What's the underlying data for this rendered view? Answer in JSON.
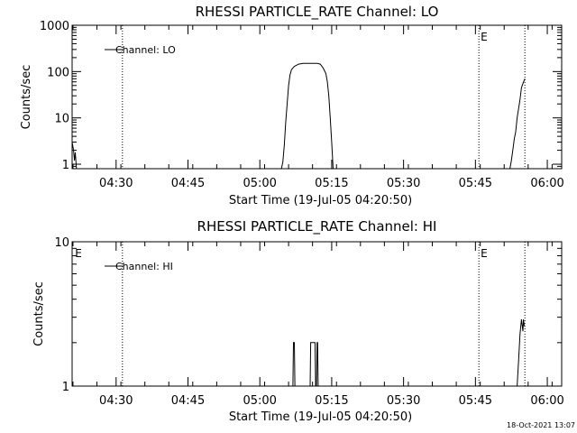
{
  "footer_timestamp": "18-Oct-2021 13:07",
  "chart_data": [
    {
      "type": "line",
      "title": "RHESSI PARTICLE_RATE Channel: LO",
      "xlabel": "Start Time (19-Jul-05 04:20:50)",
      "ylabel": "Counts/sec",
      "yscale": "log",
      "ylim": [
        0.8,
        1000
      ],
      "xlim": [
        4.347,
        6.05
      ],
      "x_ticks": [
        {
          "value": 4.5,
          "label": "04:30"
        },
        {
          "value": 4.75,
          "label": "04:45"
        },
        {
          "value": 5.0,
          "label": "05:00"
        },
        {
          "value": 5.25,
          "label": "05:15"
        },
        {
          "value": 5.5,
          "label": "05:30"
        },
        {
          "value": 5.75,
          "label": "05:45"
        },
        {
          "value": 6.0,
          "label": "06:00"
        }
      ],
      "y_ticks": [
        {
          "value": 1,
          "label": "1"
        },
        {
          "value": 10,
          "label": "10"
        },
        {
          "value": 100,
          "label": "100"
        },
        {
          "value": 1000,
          "label": "1000"
        }
      ],
      "legend": "Channel: LO",
      "legend_position": "top-left",
      "marker_lines": [
        4.522,
        5.762,
        5.922
      ],
      "marker_labels": [
        {
          "x": 5.768,
          "text": "E"
        }
      ],
      "series": [
        {
          "name": "Channel: LO",
          "segments": [
            [
              [
                4.347,
                3.0
              ],
              [
                4.352,
                2.0
              ],
              [
                4.355,
                1.2
              ],
              [
                4.358,
                1.8
              ],
              [
                4.362,
                0.8
              ]
            ],
            [
              [
                5.075,
                0.8
              ],
              [
                5.08,
                1.1
              ],
              [
                5.085,
                2.5
              ],
              [
                5.09,
                8
              ],
              [
                5.095,
                20
              ],
              [
                5.1,
                50
              ],
              [
                5.105,
                85
              ],
              [
                5.11,
                110
              ],
              [
                5.12,
                130
              ],
              [
                5.135,
                145
              ],
              [
                5.15,
                150
              ],
              [
                5.2,
                150
              ],
              [
                5.21,
                145
              ],
              [
                5.22,
                120
              ],
              [
                5.23,
                90
              ],
              [
                5.235,
                60
              ],
              [
                5.24,
                30
              ],
              [
                5.245,
                10
              ],
              [
                5.25,
                3
              ],
              [
                5.255,
                0.8
              ]
            ],
            [
              [
                5.87,
                0.8
              ],
              [
                5.875,
                1.2
              ],
              [
                5.88,
                2
              ],
              [
                5.885,
                3.5
              ],
              [
                5.89,
                5
              ],
              [
                5.895,
                10
              ],
              [
                5.905,
                25
              ],
              [
                5.91,
                45
              ],
              [
                5.915,
                55
              ],
              [
                5.92,
                65
              ],
              [
                5.922,
                70
              ]
            ]
          ]
        }
      ]
    },
    {
      "type": "line",
      "title": "RHESSI PARTICLE_RATE Channel: HI",
      "xlabel": "Start Time (19-Jul-05 04:20:50)",
      "ylabel": "Counts/sec",
      "yscale": "log",
      "ylim": [
        1,
        10
      ],
      "xlim": [
        4.347,
        6.05
      ],
      "x_ticks": [
        {
          "value": 4.5,
          "label": "04:30"
        },
        {
          "value": 4.75,
          "label": "04:45"
        },
        {
          "value": 5.0,
          "label": "05:00"
        },
        {
          "value": 5.25,
          "label": "05:15"
        },
        {
          "value": 5.5,
          "label": "05:30"
        },
        {
          "value": 5.75,
          "label": "05:45"
        },
        {
          "value": 6.0,
          "label": "06:00"
        }
      ],
      "y_ticks": [
        {
          "value": 1,
          "label": "1"
        },
        {
          "value": 10,
          "label": "10"
        }
      ],
      "legend": "Channel: HI",
      "legend_position": "top-left",
      "marker_lines": [
        4.522,
        5.762,
        5.922
      ],
      "marker_labels": [
        {
          "x": 4.357,
          "text": "E"
        },
        {
          "x": 5.768,
          "text": "E"
        }
      ],
      "series": [
        {
          "name": "Channel: HI",
          "segments": [
            [
              [
                5.115,
                1
              ],
              [
                5.117,
                2
              ],
              [
                5.12,
                2
              ],
              [
                5.122,
                1
              ]
            ],
            [
              [
                5.175,
                1
              ],
              [
                5.177,
                2
              ],
              [
                5.192,
                2
              ],
              [
                5.194,
                1
              ],
              [
                5.197,
                1
              ],
              [
                5.199,
                2
              ],
              [
                5.201,
                2
              ],
              [
                5.203,
                1
              ]
            ],
            [
              [
                5.895,
                1
              ],
              [
                5.9,
                1.5
              ],
              [
                5.905,
                2.3
              ],
              [
                5.91,
                2.9
              ],
              [
                5.915,
                2.4
              ],
              [
                5.917,
                2.9
              ],
              [
                5.92,
                2.6
              ]
            ]
          ]
        }
      ]
    }
  ]
}
